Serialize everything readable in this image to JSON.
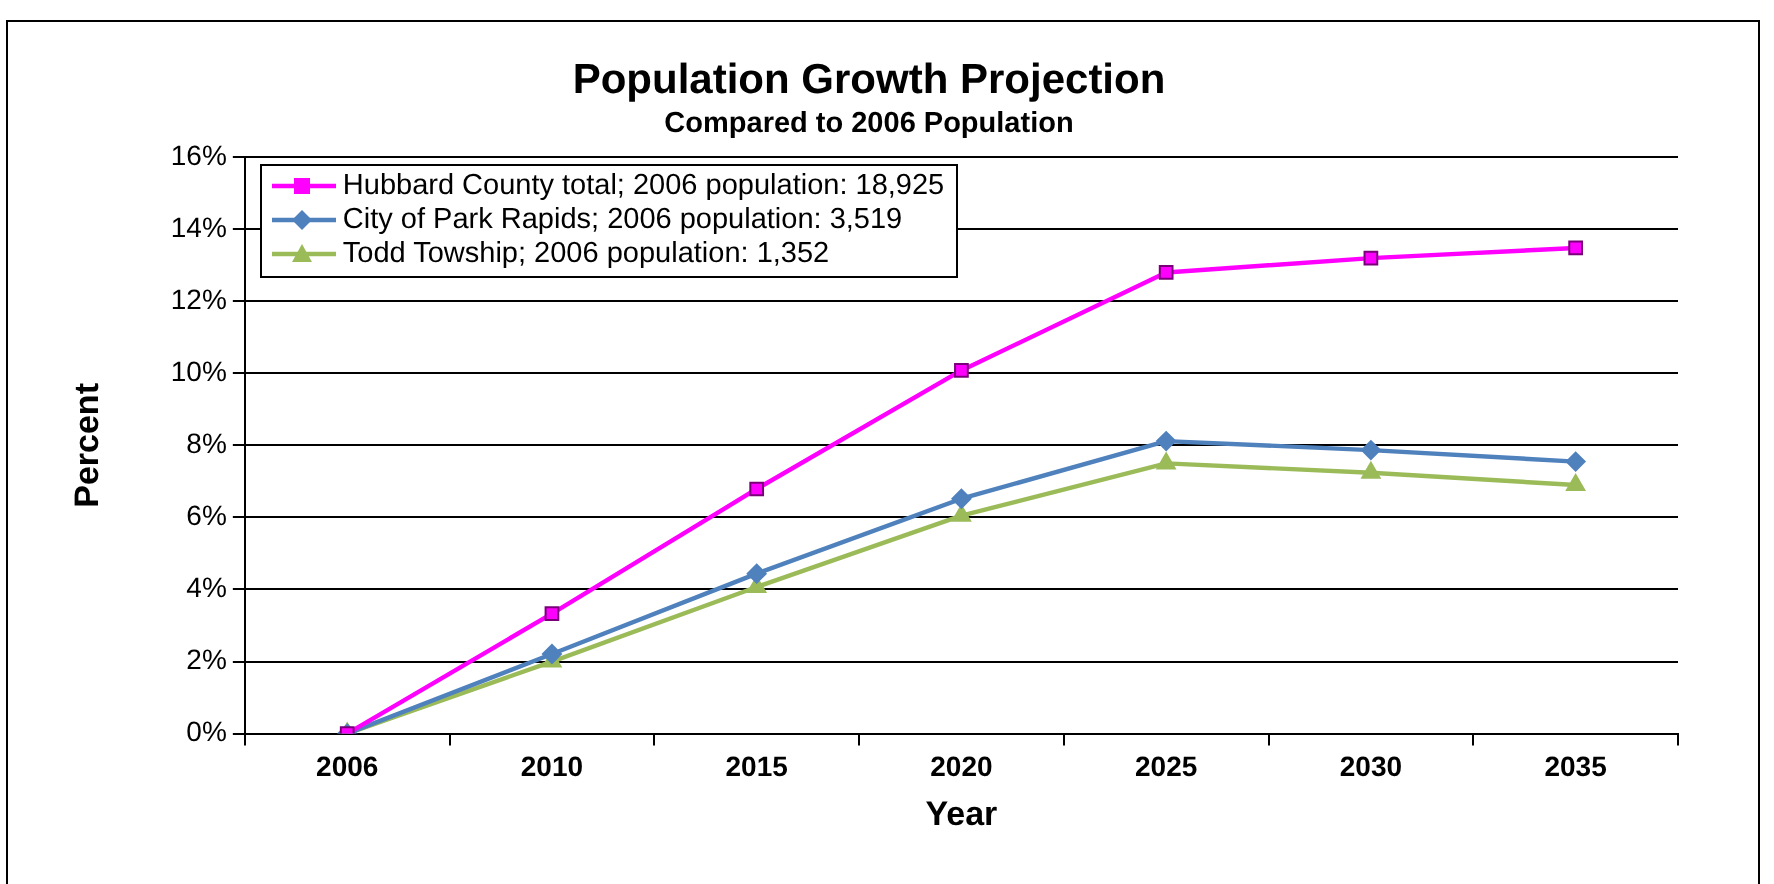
{
  "chart_data": {
    "type": "line",
    "title": "Population Growth Projection",
    "subtitle": "Compared to 2006 Population",
    "xlabel": "Year",
    "ylabel": "Percent",
    "categories": [
      "2006",
      "2010",
      "2015",
      "2020",
      "2025",
      "2030",
      "2035"
    ],
    "series": [
      {
        "name": "Hubbard County total; 2006 population: 18,925",
        "color": "#ff00ff",
        "marker": "square",
        "values": [
          0,
          3.33,
          6.79,
          10.08,
          12.8,
          13.2,
          13.48
        ]
      },
      {
        "name": "City of Park Rapids; 2006 population: 3,519",
        "color": "#4f81bd",
        "marker": "diamond",
        "values": [
          0,
          2.21,
          4.44,
          6.52,
          8.12,
          7.87,
          7.55
        ]
      },
      {
        "name": "Todd Towship; 2006 population: 1,352",
        "color": "#9bbb59",
        "marker": "triangle",
        "values": [
          0,
          2.0,
          4.07,
          6.05,
          7.5,
          7.24,
          6.9
        ]
      }
    ],
    "ylim": [
      0,
      16
    ],
    "yticks": [
      {
        "value": 0,
        "label": "0%"
      },
      {
        "value": 2,
        "label": "2%"
      },
      {
        "value": 4,
        "label": "4%"
      },
      {
        "value": 6,
        "label": "6%"
      },
      {
        "value": 8,
        "label": "8%"
      },
      {
        "value": 10,
        "label": "10%"
      },
      {
        "value": 12,
        "label": "12%"
      },
      {
        "value": 14,
        "label": "14%"
      },
      {
        "value": 16,
        "label": "16%"
      }
    ],
    "grid": "y",
    "legend": "top left",
    "line_style": "solid"
  }
}
